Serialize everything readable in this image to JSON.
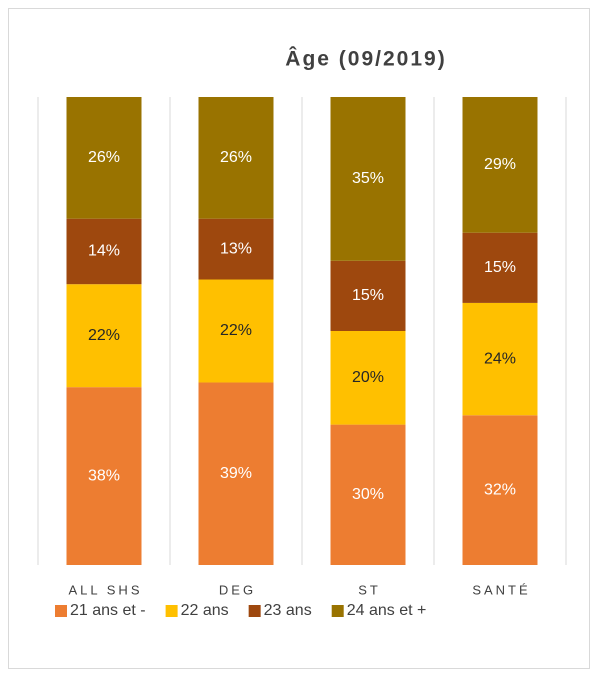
{
  "chart_data": {
    "type": "stacked_bar",
    "title": "Âge (09/2019)",
    "categories": [
      "ALL SHS",
      "DEG",
      "ST",
      "SANTÉ"
    ],
    "series": [
      {
        "name": "21 ans et -",
        "color": "#ED7D31",
        "label_color": "#ffffff",
        "values": [
          38,
          39,
          30,
          32
        ],
        "value_labels": [
          "38%",
          "39%",
          "30%",
          "32%"
        ]
      },
      {
        "name": "22 ans",
        "color": "#FFC000",
        "label_color": "#262626",
        "values": [
          22,
          22,
          20,
          24
        ],
        "value_labels": [
          "22%",
          "22%",
          "20%",
          "24%"
        ]
      },
      {
        "name": "23 ans",
        "color": "#9E480E",
        "label_color": "#ffffff",
        "values": [
          14,
          13,
          15,
          15
        ],
        "value_labels": [
          "14%",
          "13%",
          "15%",
          "15%"
        ]
      },
      {
        "name": "24 ans et +",
        "color": "#997300",
        "label_color": "#ffffff",
        "values": [
          26,
          26,
          35,
          29
        ],
        "value_labels": [
          "26%",
          "26%",
          "35%",
          "29%"
        ]
      }
    ],
    "ylim": [
      0,
      100
    ],
    "legend": "bottom"
  }
}
